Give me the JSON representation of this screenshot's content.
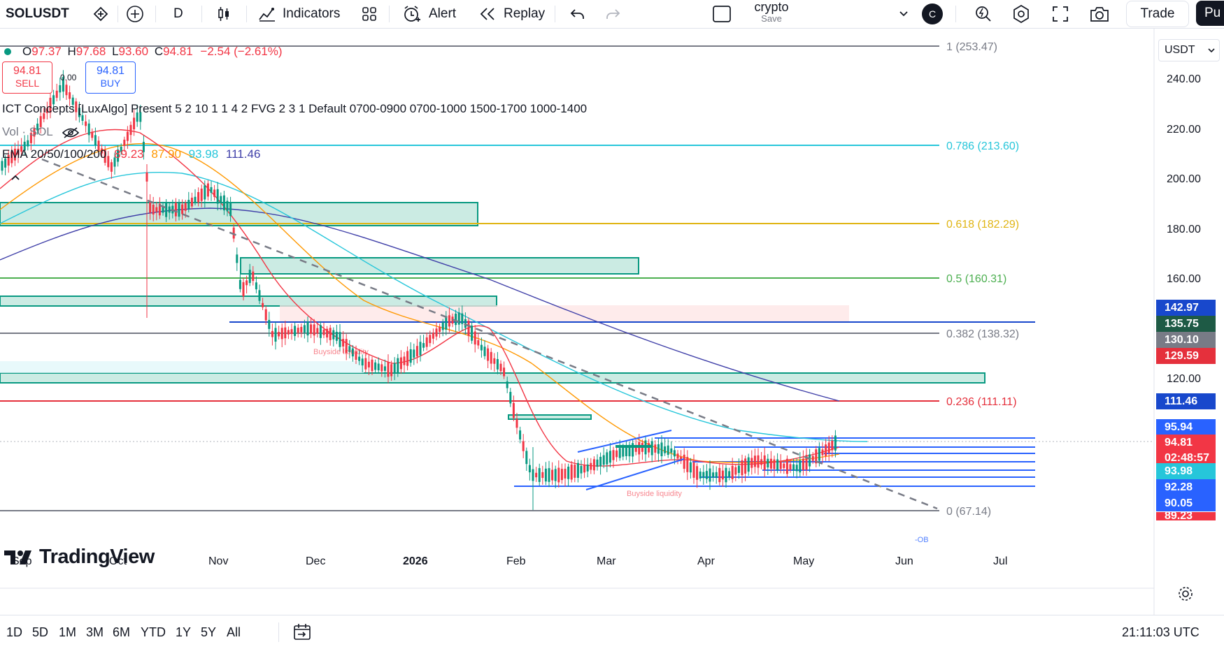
{
  "toolbar": {
    "symbol": "SOLUSDT",
    "interval": "D",
    "indicators_label": "Indicators",
    "alert_label": "Alert",
    "replay_label": "Replay",
    "layout_name": "crypto",
    "layout_save": "Save",
    "avatar_letter": "C",
    "trade_label": "Trade",
    "publish_label": "Pu"
  },
  "legend": {
    "open_label": "O",
    "open": "97.37",
    "high_label": "H",
    "high": "97.68",
    "low_label": "L",
    "low": "93.60",
    "close_label": "C",
    "close": "94.81",
    "change": "−2.54 (−2.61%)",
    "sell_price": "94.81",
    "sell_label": "SELL",
    "spread": "0.00",
    "buy_price": "94.81",
    "buy_label": "BUY",
    "indicator_line": "ICT Concepts [LuxAlgo] Present 5 2 10 1 1 4 2 FVG 2 3 1 Default 0700-0900 0700-1000 1500-1700 1000-1400",
    "vol_line": "Vol · SOL",
    "ema_label": "EMA 20/50/100/200",
    "ema20": "89.23",
    "ema50": "87.90",
    "ema100": "93.98",
    "ema200": "111.46"
  },
  "currency": "USDT",
  "fib_levels": [
    {
      "label": "1 (253.47)",
      "price": 253.47,
      "color": "#787b86"
    },
    {
      "label": "0.786 (213.60)",
      "price": 213.6,
      "color": "#26c6da"
    },
    {
      "label": "0.618 (182.29)",
      "price": 182.29,
      "color": "#e0b514"
    },
    {
      "label": "0.5 (160.31)",
      "price": 160.31,
      "color": "#4caf50"
    },
    {
      "label": "0.382 (138.32)",
      "price": 138.32,
      "color": "#787b86"
    },
    {
      "label": "0.236 (111.11)",
      "price": 111.11,
      "color": "#e5303c"
    },
    {
      "label": "0 (67.14)",
      "price": 67.14,
      "color": "#787b86"
    }
  ],
  "price_axis": [
    "240.00",
    "220.00",
    "200.00",
    "180.00",
    "160.00",
    "120.00"
  ],
  "price_tags": [
    {
      "value": "142.97",
      "color": "#1848cc"
    },
    {
      "value": "135.75",
      "color": "#1e5a45"
    },
    {
      "value": "130.10",
      "color": "#787b86"
    },
    {
      "value": "129.59",
      "color": "#e5303c"
    },
    {
      "value": "111.46",
      "color": "#1848cc"
    },
    {
      "value": "95.94",
      "color": "#2962ff"
    },
    {
      "value": "94.81",
      "color": "#f23645"
    },
    {
      "value": "02:48:57",
      "color": "#f23645"
    },
    {
      "value": "93.98",
      "color": "#26c6da"
    },
    {
      "value": "92.28",
      "color": "#2962ff"
    },
    {
      "value": "90.05",
      "color": "#2962ff"
    },
    {
      "value": "89.23",
      "color": "#f23645"
    }
  ],
  "time_axis": [
    "Sep",
    "Oct",
    "Nov",
    "Dec",
    "2026",
    "Feb",
    "Mar",
    "Apr",
    "May",
    "Jun",
    "Jul"
  ],
  "annotations": {
    "buyside1": "Buyside liquidity",
    "buyside2": "Buyside liquidity",
    "ob": "-OB"
  },
  "logo_text": "TradingView",
  "ranges": [
    "1D",
    "5D",
    "1M",
    "3M",
    "6M",
    "YTD",
    "1Y",
    "5Y",
    "All"
  ],
  "clock": "21:11:03 UTC",
  "colors": {
    "up": "#089981",
    "down": "#f23645",
    "ema20": "#f23645",
    "ema50": "#ff9800",
    "ema100": "#26c6da",
    "ema200": "#3f3fa8"
  }
}
